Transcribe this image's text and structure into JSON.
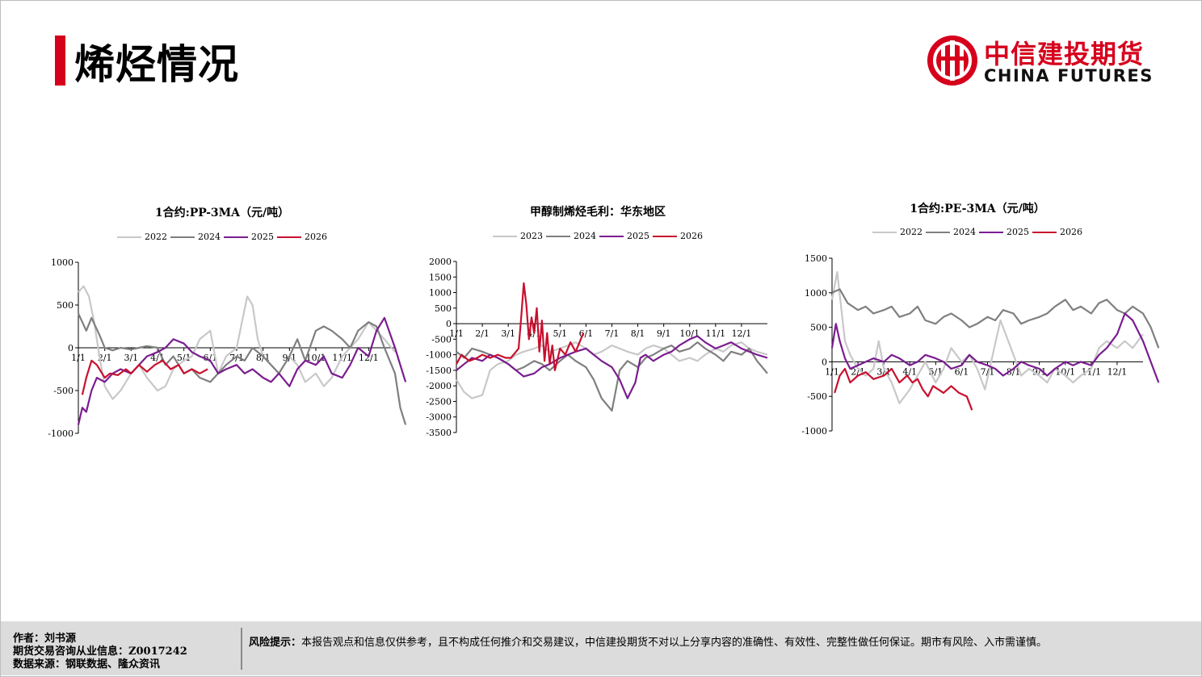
{
  "page": {
    "title": "烯烃情况"
  },
  "logo": {
    "cn": "中信建投期货",
    "en": "CHINA FUTURES"
  },
  "colors": {
    "2022": "#c8c8c8",
    "2023": "#c8c8c8",
    "2024": "#7f7f7f",
    "2025": "#7a1d8f",
    "2026": "#c8102e",
    "accent": "#d6001c"
  },
  "chart_data": [
    {
      "type": "line",
      "title": "1合约:PP-3MA（元/吨）",
      "ylim": [
        -1000,
        1000
      ],
      "yticks": [
        -1000,
        -500,
        0,
        500,
        1000
      ],
      "x_axis_value": 0,
      "categories": [
        "1/1",
        "2/1",
        "3/1",
        "4/1",
        "5/1",
        "6/1",
        "7/1",
        "8/1",
        "9/1",
        "10/1",
        "11/1",
        "12/1"
      ],
      "legend": [
        "2022",
        "2024",
        "2025",
        "2026"
      ],
      "series": [
        {
          "name": "2022",
          "x": [
            0,
            0.2,
            0.4,
            0.6,
            0.8,
            1.0,
            1.3,
            1.6,
            2.0,
            2.3,
            2.6,
            3.0,
            3.3,
            3.6,
            4.0,
            4.3,
            4.6,
            5.0,
            5.3,
            5.6,
            6.0,
            6.2,
            6.4,
            6.6,
            6.8,
            7.0,
            7.3,
            7.6,
            8.0,
            8.3,
            8.6,
            9.0,
            9.3,
            9.6,
            10.0,
            10.3,
            10.6,
            11.0,
            11.3,
            11.6,
            12.0
          ],
          "y": [
            650,
            720,
            600,
            300,
            -100,
            -450,
            -600,
            -500,
            -300,
            -200,
            -350,
            -500,
            -450,
            -250,
            -150,
            -100,
            100,
            200,
            -300,
            -100,
            0,
            300,
            600,
            500,
            100,
            -100,
            -200,
            -300,
            -100,
            -200,
            -400,
            -300,
            -450,
            -350,
            -100,
            0,
            100,
            300,
            200,
            100,
            -50
          ]
        },
        {
          "name": "2024",
          "x": [
            0,
            0.3,
            0.5,
            0.8,
            1.0,
            1.3,
            1.6,
            2.0,
            2.3,
            2.6,
            3.0,
            3.3,
            3.6,
            4.0,
            4.3,
            4.6,
            5.0,
            5.3,
            5.6,
            6.0,
            6.3,
            6.6,
            7.0,
            7.3,
            7.6,
            8.0,
            8.3,
            8.6,
            9.0,
            9.3,
            9.6,
            10.0,
            10.3,
            10.6,
            11.0,
            11.3,
            11.6,
            12.0,
            12.2,
            12.4
          ],
          "y": [
            400,
            200,
            350,
            150,
            0,
            -30,
            0,
            -20,
            0,
            20,
            0,
            -200,
            -100,
            -300,
            -250,
            -350,
            -400,
            -300,
            -200,
            -100,
            -150,
            0,
            -100,
            -200,
            -300,
            -100,
            100,
            -150,
            200,
            250,
            200,
            100,
            0,
            200,
            300,
            250,
            0,
            -300,
            -700,
            -900
          ]
        },
        {
          "name": "2025",
          "x": [
            0,
            0.15,
            0.3,
            0.5,
            0.7,
            1.0,
            1.3,
            1.6,
            2.0,
            2.3,
            2.6,
            3.0,
            3.3,
            3.6,
            4.0,
            4.3,
            4.6,
            5.0,
            5.3,
            5.6,
            6.0,
            6.3,
            6.6,
            7.0,
            7.3,
            7.6,
            8.0,
            8.3,
            8.6,
            9.0,
            9.3,
            9.6,
            10.0,
            10.3,
            10.6,
            11.0,
            11.3,
            11.6,
            12.0,
            12.2,
            12.4
          ],
          "y": [
            -900,
            -700,
            -750,
            -500,
            -350,
            -400,
            -300,
            -250,
            -300,
            -200,
            -100,
            -50,
            0,
            100,
            50,
            -50,
            -100,
            -150,
            -300,
            -250,
            -200,
            -300,
            -250,
            -350,
            -400,
            -300,
            -450,
            -250,
            -150,
            -200,
            -100,
            -300,
            -350,
            -200,
            0,
            -100,
            200,
            350,
            0,
            -200,
            -400
          ]
        },
        {
          "name": "2026",
          "x": [
            0.15,
            0.3,
            0.5,
            0.7,
            0.9,
            1.0,
            1.2,
            1.5,
            1.8,
            2.0,
            2.3,
            2.6,
            2.9,
            3.2,
            3.5,
            3.8,
            4.0,
            4.3,
            4.6,
            4.9
          ],
          "y": [
            -550,
            -350,
            -150,
            -200,
            -300,
            -350,
            -300,
            -320,
            -250,
            -300,
            -200,
            -280,
            -200,
            -150,
            -250,
            -200,
            -300,
            -250,
            -300,
            -250
          ]
        }
      ]
    },
    {
      "type": "line",
      "title": "甲醇制烯烃毛利：华东地区",
      "ylim": [
        -3500,
        2000
      ],
      "yticks": [
        -3500,
        -3000,
        -2500,
        -2000,
        -1500,
        -1000,
        -500,
        0,
        500,
        1000,
        1500,
        2000
      ],
      "x_axis_value": 0,
      "categories": [
        "1/1",
        "2/1",
        "3/1",
        "4/1",
        "5/1",
        "6/1",
        "7/1",
        "8/1",
        "9/1",
        "10/1",
        "11/1",
        "12/1"
      ],
      "legend": [
        "2023",
        "2024",
        "2025",
        "2026"
      ],
      "series": [
        {
          "name": "2023",
          "x": [
            0,
            0.3,
            0.6,
            1.0,
            1.3,
            1.6,
            2.0,
            2.3,
            2.6,
            3.0,
            3.3,
            3.6,
            4.0,
            4.3,
            4.6,
            5.0,
            5.3,
            5.6,
            6.0,
            6.3,
            6.6,
            7.0,
            7.3,
            7.6,
            8.0,
            8.3,
            8.6,
            9.0,
            9.3,
            9.6,
            10.0,
            10.3,
            10.6,
            11.0,
            11.3,
            11.6,
            12.0
          ],
          "y": [
            -1800,
            -2200,
            -2400,
            -2300,
            -1500,
            -1300,
            -1200,
            -1000,
            -900,
            -800,
            -700,
            -900,
            -800,
            -700,
            -600,
            -800,
            -1000,
            -900,
            -700,
            -800,
            -900,
            -1000,
            -800,
            -700,
            -800,
            -1000,
            -1200,
            -1100,
            -1200,
            -1000,
            -800,
            -900,
            -700,
            -600,
            -800,
            -900,
            -1000
          ]
        },
        {
          "name": "2024",
          "x": [
            0,
            0.3,
            0.6,
            1.0,
            1.3,
            1.6,
            2.0,
            2.3,
            2.6,
            3.0,
            3.3,
            3.6,
            4.0,
            4.3,
            4.6,
            5.0,
            5.3,
            5.6,
            6.0,
            6.3,
            6.6,
            7.0,
            7.3,
            7.6,
            8.0,
            8.3,
            8.6,
            9.0,
            9.3,
            9.6,
            10.0,
            10.3,
            10.6,
            11.0,
            11.3,
            11.6,
            12.0
          ],
          "y": [
            -900,
            -1100,
            -800,
            -900,
            -1000,
            -1100,
            -1300,
            -1500,
            -1400,
            -1200,
            -1300,
            -1500,
            -1200,
            -1000,
            -1200,
            -1400,
            -1800,
            -2400,
            -2800,
            -1500,
            -1200,
            -1400,
            -1100,
            -1000,
            -800,
            -700,
            -900,
            -800,
            -600,
            -800,
            -1000,
            -1200,
            -900,
            -1000,
            -800,
            -1200,
            -1600
          ]
        },
        {
          "name": "2025",
          "x": [
            0,
            0.3,
            0.6,
            1.0,
            1.3,
            1.6,
            2.0,
            2.3,
            2.6,
            3.0,
            3.3,
            3.6,
            4.0,
            4.3,
            4.6,
            5.0,
            5.3,
            5.6,
            6.0,
            6.3,
            6.6,
            6.9,
            7.1,
            7.3,
            7.6,
            8.0,
            8.3,
            8.6,
            9.0,
            9.3,
            9.6,
            10.0,
            10.3,
            10.6,
            11.0,
            11.3,
            11.6,
            12.0
          ],
          "y": [
            -1500,
            -1300,
            -1100,
            -1200,
            -1000,
            -1100,
            -1300,
            -1500,
            -1700,
            -1600,
            -1400,
            -1300,
            -1100,
            -1000,
            -900,
            -800,
            -1000,
            -1200,
            -1400,
            -1800,
            -2400,
            -1900,
            -1100,
            -1000,
            -1200,
            -1000,
            -900,
            -700,
            -500,
            -400,
            -600,
            -800,
            -700,
            -600,
            -800,
            -900,
            -1000,
            -1100
          ]
        },
        {
          "name": "2026",
          "x": [
            0,
            0.2,
            0.5,
            0.8,
            1.0,
            1.3,
            1.6,
            1.9,
            2.1,
            2.3,
            2.4,
            2.5,
            2.6,
            2.7,
            2.8,
            2.9,
            3.0,
            3.1,
            3.2,
            3.3,
            3.4,
            3.5,
            3.6,
            3.7,
            3.8,
            4.0,
            4.2,
            4.4,
            4.6,
            4.8,
            4.9
          ],
          "y": [
            -1300,
            -1000,
            -1200,
            -1100,
            -1000,
            -1100,
            -1000,
            -1100,
            -1100,
            -900,
            -800,
            200,
            1300,
            600,
            -500,
            200,
            -300,
            500,
            -900,
            100,
            -1200,
            -300,
            -1300,
            -700,
            -1500,
            -800,
            -1000,
            -600,
            -900,
            -500,
            -300
          ]
        }
      ]
    },
    {
      "type": "line",
      "title": "1合约:PE-3MA（元/吨）",
      "ylim": [
        -1000,
        1500
      ],
      "yticks": [
        -1000,
        -500,
        0,
        500,
        1000,
        1500
      ],
      "x_axis_value": 0,
      "categories": [
        "1/1",
        "2/1",
        "3/1",
        "4/1",
        "5/1",
        "6/1",
        "7/1",
        "8/1",
        "9/1",
        "10/1",
        "11/1",
        "12/1"
      ],
      "legend": [
        "2022",
        "2024",
        "2025",
        "2026"
      ],
      "series": [
        {
          "name": "2022",
          "x": [
            0,
            0.2,
            0.35,
            0.5,
            0.7,
            1.0,
            1.3,
            1.6,
            1.8,
            2.0,
            2.3,
            2.6,
            3.0,
            3.3,
            3.6,
            4.0,
            4.3,
            4.6,
            5.0,
            5.3,
            5.6,
            5.9,
            6.2,
            6.5,
            6.8,
            7.0,
            7.3,
            7.6,
            8.0,
            8.3,
            8.6,
            9.0,
            9.3,
            9.6,
            10.0,
            10.3,
            10.6,
            11.0,
            11.3,
            11.6,
            12.0
          ],
          "y": [
            900,
            1300,
            800,
            300,
            100,
            -100,
            -200,
            -100,
            300,
            -100,
            -300,
            -600,
            -400,
            -200,
            0,
            -300,
            -100,
            200,
            0,
            100,
            -100,
            -400,
            100,
            600,
            300,
            100,
            -200,
            -100,
            -200,
            -300,
            -100,
            -200,
            -300,
            -200,
            -100,
            200,
            300,
            200,
            300,
            200,
            400
          ]
        },
        {
          "name": "2024",
          "x": [
            0,
            0.3,
            0.6,
            1.0,
            1.3,
            1.6,
            2.0,
            2.3,
            2.6,
            3.0,
            3.3,
            3.6,
            4.0,
            4.3,
            4.6,
            5.0,
            5.3,
            5.6,
            6.0,
            6.3,
            6.6,
            7.0,
            7.3,
            7.6,
            8.0,
            8.3,
            8.6,
            9.0,
            9.3,
            9.6,
            10.0,
            10.3,
            10.6,
            11.0,
            11.3,
            11.6,
            12.0,
            12.3,
            12.6
          ],
          "y": [
            1000,
            1050,
            850,
            750,
            800,
            700,
            750,
            800,
            650,
            700,
            800,
            600,
            550,
            650,
            700,
            600,
            500,
            550,
            650,
            600,
            750,
            700,
            550,
            600,
            650,
            700,
            800,
            900,
            750,
            800,
            700,
            850,
            900,
            750,
            700,
            800,
            700,
            500,
            200
          ]
        },
        {
          "name": "2025",
          "x": [
            0,
            0.15,
            0.3,
            0.5,
            0.7,
            1.0,
            1.3,
            1.6,
            2.0,
            2.3,
            2.6,
            3.0,
            3.3,
            3.6,
            4.0,
            4.3,
            4.6,
            5.0,
            5.3,
            5.6,
            6.0,
            6.3,
            6.6,
            7.0,
            7.3,
            7.6,
            8.0,
            8.3,
            8.6,
            9.0,
            9.3,
            9.6,
            10.0,
            10.3,
            10.6,
            11.0,
            11.3,
            11.6,
            12.0,
            12.3,
            12.6
          ],
          "y": [
            200,
            550,
            300,
            50,
            -100,
            -50,
            0,
            50,
            0,
            100,
            50,
            -50,
            0,
            100,
            50,
            0,
            -100,
            -50,
            100,
            0,
            -50,
            -100,
            -200,
            -100,
            0,
            -50,
            -100,
            -200,
            -100,
            0,
            -50,
            0,
            -50,
            100,
            200,
            400,
            700,
            600,
            300,
            0,
            -300
          ]
        },
        {
          "name": "2026",
          "x": [
            0.1,
            0.3,
            0.5,
            0.7,
            1.0,
            1.3,
            1.6,
            2.0,
            2.3,
            2.6,
            2.9,
            3.1,
            3.3,
            3.5,
            3.7,
            3.9,
            4.1,
            4.3,
            4.6,
            4.9,
            5.2,
            5.4
          ],
          "y": [
            -450,
            -200,
            -100,
            -300,
            -200,
            -150,
            -250,
            -200,
            -100,
            -300,
            -200,
            -300,
            -250,
            -400,
            -500,
            -350,
            -400,
            -450,
            -350,
            -450,
            -500,
            -700
          ]
        }
      ]
    }
  ],
  "footer": {
    "author": "作者：刘书源",
    "license": "期货交易咨询从业信息：Z0017242",
    "source": "数据来源：钢联数据、隆众资讯",
    "risk_label": "风险提示：",
    "risk_text": "本报告观点和信息仅供参考，且不构成任何推介和交易建议，中信建投期货不对以上分享内容的准确性、有效性、完整性做任何保证。期市有风险、入市需谨慎。"
  }
}
